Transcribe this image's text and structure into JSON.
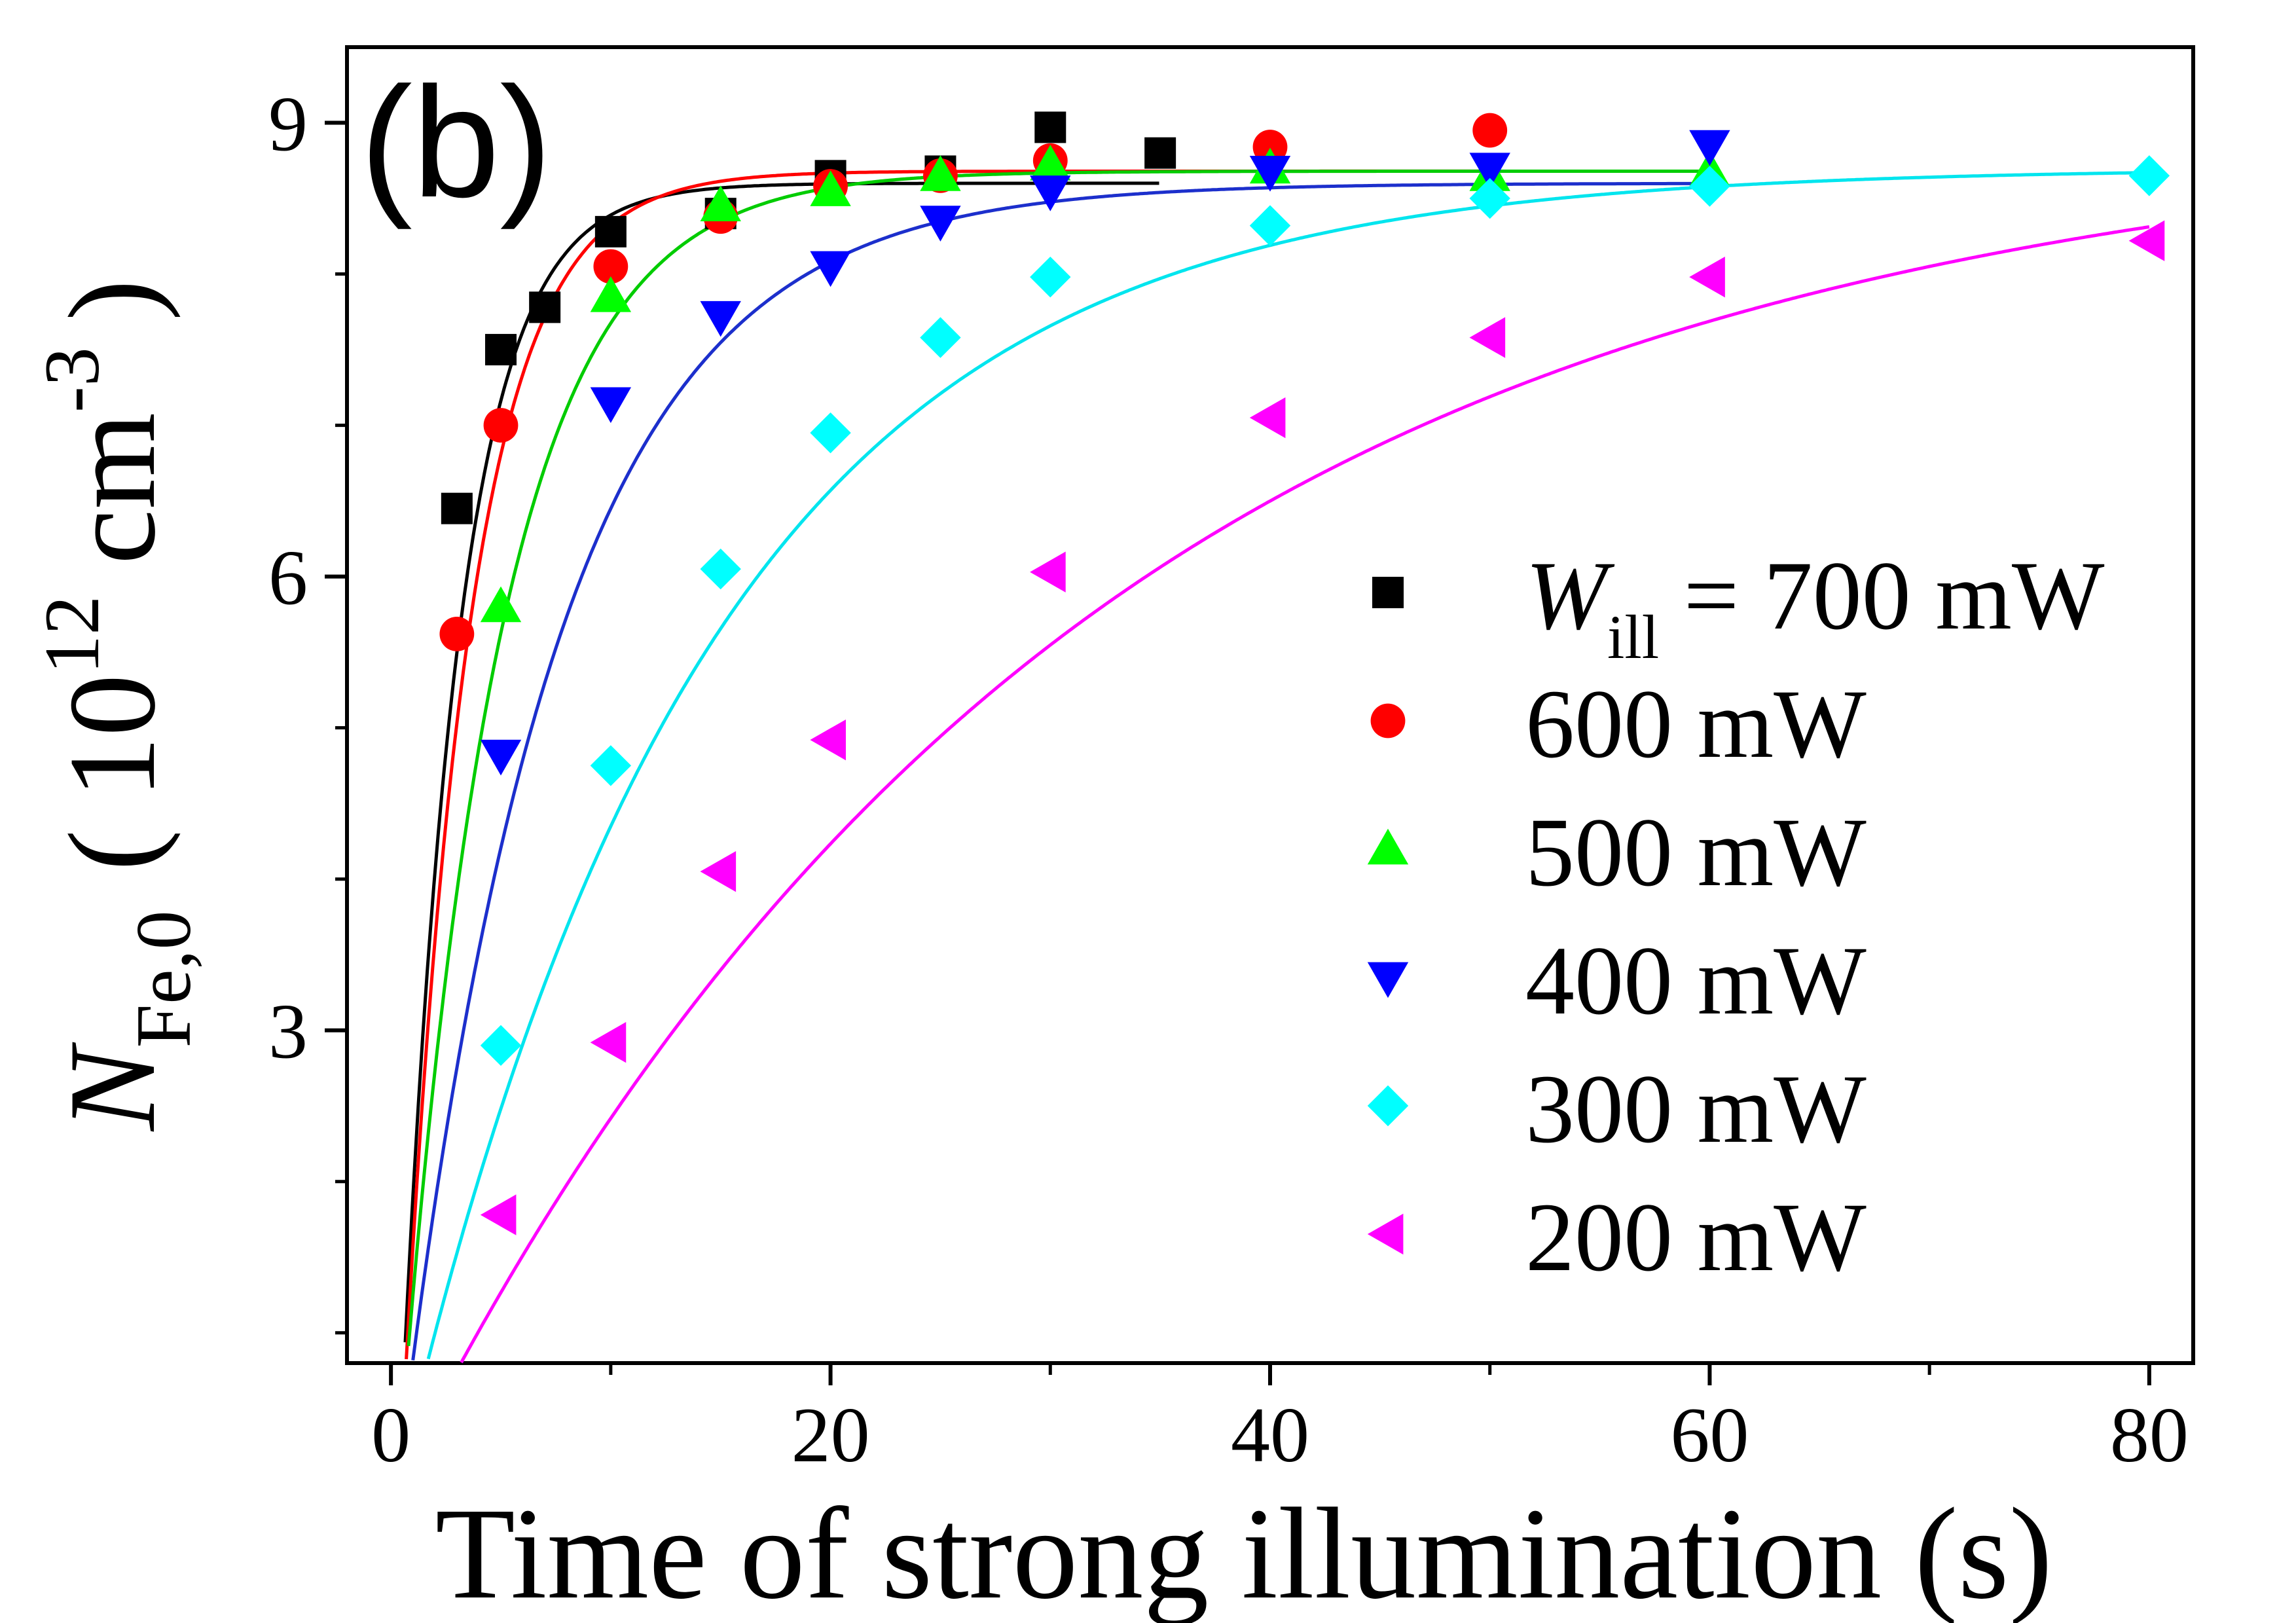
{
  "chart_data": {
    "type": "scatter",
    "panel_label": "(b)",
    "xlabel": "Time of strong illumination  (s)",
    "ylabel": {
      "main": "N",
      "sub": "Fe,0",
      "unit_open": "( 10",
      "unit_exp": "12",
      "unit_mid": " cm",
      "unit_exp2": "-3",
      "unit_close": ")"
    },
    "xlim": [
      -2,
      82
    ],
    "ylim": [
      0.8,
      9.5
    ],
    "x_ticks": [
      0,
      20,
      40,
      60,
      80
    ],
    "x_tick_labels": [
      "0",
      "20",
      "40",
      "60",
      "80"
    ],
    "x_minor_ticks": [
      10,
      30,
      50,
      70
    ],
    "y_ticks": [
      3,
      6,
      9
    ],
    "y_tick_labels": [
      "3",
      "6",
      "9"
    ],
    "y_minor_ticks": [
      1,
      2,
      4,
      5,
      7,
      8
    ],
    "legend": {
      "placement": "lower-right",
      "first_prefix": "W",
      "first_sub": "ill",
      "first_suffix": " = 700 mW"
    },
    "series": [
      {
        "name": "700 mW",
        "marker": "square",
        "color": "#000000",
        "fit_color": "#000000",
        "x": [
          3,
          5,
          7,
          10,
          15,
          20,
          25,
          30,
          35
        ],
        "y": [
          6.45,
          7.5,
          7.78,
          8.28,
          8.4,
          8.65,
          8.68,
          8.97,
          8.8
        ],
        "fit": {
          "ymax": 8.6,
          "t0": 0.35,
          "tau": 2.6
        }
      },
      {
        "name": "600 mW",
        "marker": "circle",
        "color": "#ff0000",
        "fit_color": "#ff0000",
        "x": [
          3,
          5,
          10,
          15,
          20,
          25,
          30,
          40,
          50
        ],
        "y": [
          5.62,
          7.0,
          8.05,
          8.38,
          8.58,
          8.65,
          8.75,
          8.84,
          8.95
        ],
        "fit": {
          "ymax": 8.68,
          "t0": 0.4,
          "tau": 3.0
        }
      },
      {
        "name": "500 mW",
        "marker": "triangle-up",
        "color": "#00ff00",
        "fit_color": "#00cc00",
        "x": [
          5,
          10,
          15,
          20,
          25,
          30,
          40,
          50,
          60
        ],
        "y": [
          5.8,
          7.85,
          8.45,
          8.55,
          8.65,
          8.72,
          8.7,
          8.65,
          8.68
        ],
        "fit": {
          "ymax": 8.68,
          "t0": 0.3,
          "tau": 4.5
        }
      },
      {
        "name": "400 mW",
        "marker": "triangle-down",
        "color": "#0000ff",
        "fit_color": "#1c2fcc",
        "x": [
          5,
          10,
          15,
          20,
          25,
          30,
          40,
          50,
          60
        ],
        "y": [
          4.82,
          7.15,
          7.72,
          8.05,
          8.35,
          8.55,
          8.68,
          8.7,
          8.85
        ],
        "fit": {
          "ymax": 8.6,
          "t0": 0.3,
          "tau": 7.0
        }
      },
      {
        "name": "300 mW",
        "marker": "diamond",
        "color": "#00ffff",
        "fit_color": "#00e5ee",
        "x": [
          5,
          10,
          15,
          20,
          25,
          30,
          40,
          50,
          60,
          80
        ],
        "y": [
          2.9,
          4.75,
          6.05,
          6.95,
          7.58,
          7.98,
          8.32,
          8.5,
          8.58,
          8.65
        ],
        "fit": {
          "ymax": 8.7,
          "t0": 0.3,
          "tau": 14.0
        }
      },
      {
        "name": "200 mW",
        "marker": "triangle-left",
        "color": "#ff00ff",
        "fit_color": "#ff00ff",
        "x": [
          5,
          10,
          15,
          20,
          30,
          40,
          50,
          60,
          80
        ],
        "y": [
          1.78,
          2.92,
          4.05,
          4.92,
          6.03,
          7.05,
          7.58,
          7.98,
          8.22
        ],
        "fit": {
          "ymax": 9.0,
          "t0": 0.3,
          "tau": 31.0
        }
      }
    ]
  }
}
